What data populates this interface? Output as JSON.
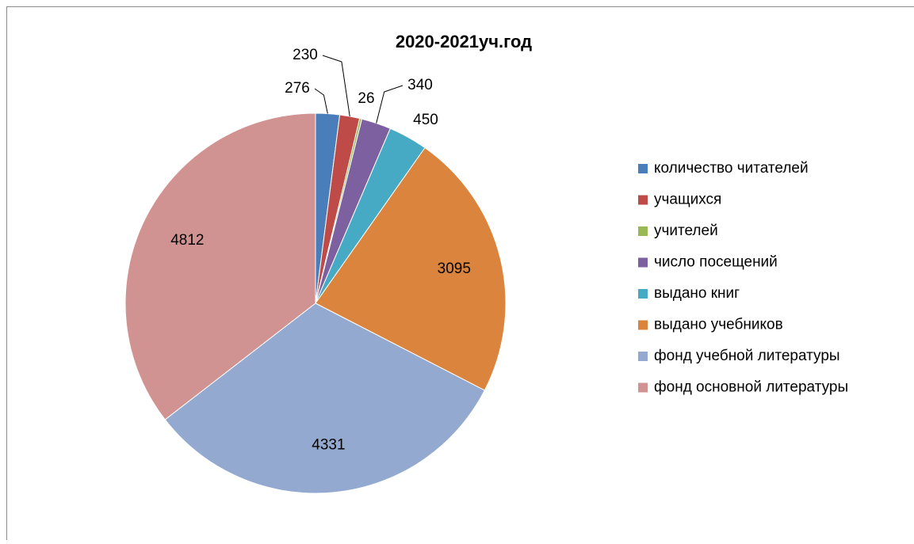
{
  "chart_data": {
    "type": "pie",
    "title": "2020-2021уч.год",
    "categories": [
      "количество читателей",
      "учащихся",
      "учителей",
      "число посещений",
      "выдано книг",
      "выдано учебников",
      "фонд учебной литературы",
      "фонд основной литературы"
    ],
    "values": [
      276,
      230,
      26,
      340,
      450,
      3095,
      4331,
      4812
    ],
    "colors": [
      "#4a7ebb",
      "#be4b48",
      "#98b954",
      "#7d60a0",
      "#46aac5",
      "#db843d",
      "#93a9cf",
      "#d19392"
    ],
    "legend": "right"
  }
}
